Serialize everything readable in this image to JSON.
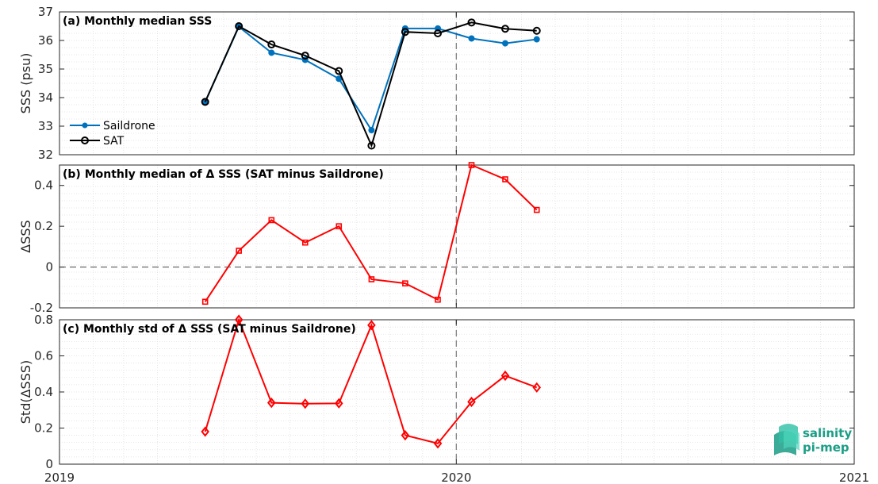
{
  "chart_data": [
    {
      "type": "line",
      "title": "(a) Monthly median SSS",
      "ylabel": "SSS (psu)",
      "ylim": [
        32,
        37
      ],
      "yticks": [
        "32",
        "33",
        "34",
        "35",
        "36",
        "37"
      ],
      "xlim": [
        "2019-01-01",
        "2021-01-01"
      ],
      "grid": true,
      "legend_position": "lower-left",
      "series": [
        {
          "name": "Saildrone",
          "color": "#0072BD",
          "marker": "filled-dot",
          "x": [
            "2019-05-15",
            "2019-06-15",
            "2019-07-15",
            "2019-08-15",
            "2019-09-15",
            "2019-10-15",
            "2019-11-15",
            "2019-12-15",
            "2020-01-15",
            "2020-02-15",
            "2020-03-15"
          ],
          "values": [
            33.85,
            36.48,
            35.57,
            35.32,
            34.66,
            32.86,
            36.42,
            36.42,
            36.07,
            35.9,
            36.04
          ]
        },
        {
          "name": "SAT",
          "color": "#000000",
          "marker": "open-circle",
          "x": [
            "2019-05-15",
            "2019-06-15",
            "2019-07-15",
            "2019-08-15",
            "2019-09-15",
            "2019-10-15",
            "2019-11-15",
            "2019-12-15",
            "2020-01-15",
            "2020-02-15",
            "2020-03-15"
          ],
          "values": [
            33.85,
            36.5,
            35.86,
            35.47,
            34.93,
            32.32,
            36.3,
            36.25,
            36.63,
            36.41,
            36.34
          ]
        }
      ]
    },
    {
      "type": "line",
      "title": "(b) Monthly median of Δ SSS (SAT minus Saildrone)",
      "ylabel": "ΔSSS",
      "ylim": [
        -0.2,
        0.5
      ],
      "yticks": [
        "-0.2",
        "0",
        "0.2",
        "0.4"
      ],
      "xlim": [
        "2019-01-01",
        "2021-01-01"
      ],
      "grid": true,
      "zero_line": true,
      "series": [
        {
          "color": "#FF0000",
          "marker": "square",
          "x": [
            "2019-05-15",
            "2019-06-15",
            "2019-07-15",
            "2019-08-15",
            "2019-09-15",
            "2019-10-15",
            "2019-11-15",
            "2019-12-15",
            "2020-01-15",
            "2020-02-15",
            "2020-03-15"
          ],
          "values": [
            -0.17,
            0.08,
            0.23,
            0.12,
            0.2,
            -0.06,
            -0.08,
            -0.16,
            0.5,
            0.43,
            0.28
          ]
        }
      ]
    },
    {
      "type": "line",
      "title": "(c) Monthly std of Δ SSS (SAT minus Saildrone)",
      "ylabel": "Std(ΔSSS)",
      "ylim": [
        0,
        0.8
      ],
      "yticks": [
        "0",
        "0.2",
        "0.4",
        "0.6",
        "0.8"
      ],
      "xlim": [
        "2019-01-01",
        "2021-01-01"
      ],
      "xticks": [
        "2019",
        "2020",
        "2021"
      ],
      "grid": true,
      "series": [
        {
          "color": "#FF0000",
          "marker": "diamond",
          "x": [
            "2019-05-15",
            "2019-06-15",
            "2019-07-15",
            "2019-08-15",
            "2019-09-15",
            "2019-10-15",
            "2019-11-15",
            "2019-12-15",
            "2020-01-15",
            "2020-02-15",
            "2020-03-15"
          ],
          "values": [
            0.18,
            0.8,
            0.34,
            0.335,
            0.337,
            0.77,
            0.16,
            0.115,
            0.345,
            0.49,
            0.425
          ]
        }
      ]
    }
  ],
  "logo": {
    "line1": "salinity",
    "line2": "pi-mep"
  }
}
